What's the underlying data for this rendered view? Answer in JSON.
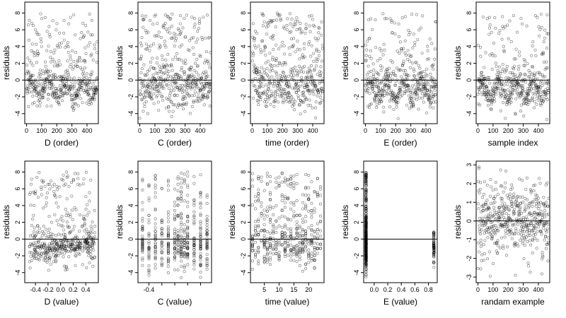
{
  "chart_data": [
    {
      "type": "scatter",
      "id": "p1",
      "xlabel": "D (order)",
      "ylabel": "residuals",
      "xlim": [
        -12,
        475
      ],
      "ylim": [
        -5.2,
        9.3
      ],
      "xticks": [
        0,
        100,
        200,
        300,
        400
      ],
      "yticks": [
        -4,
        -2,
        0,
        2,
        4,
        6,
        8
      ],
      "hline": 0,
      "pattern": "order_clustered",
      "n": 470
    },
    {
      "type": "scatter",
      "id": "p2",
      "xlabel": "C (order)",
      "ylabel": "residuals",
      "xlim": [
        -12,
        475
      ],
      "ylim": [
        -5.2,
        9.3
      ],
      "xticks": [
        0,
        100,
        200,
        300,
        400
      ],
      "yticks": [
        -4,
        -2,
        0,
        2,
        4,
        6,
        8
      ],
      "hline": 0,
      "pattern": "order",
      "n": 470
    },
    {
      "type": "scatter",
      "id": "p3",
      "xlabel": "time (order)",
      "ylabel": "residuals",
      "xlim": [
        -12,
        475
      ],
      "ylim": [
        -5.2,
        9.3
      ],
      "xticks": [
        0,
        100,
        200,
        300,
        400
      ],
      "yticks": [
        -4,
        -2,
        0,
        2,
        4,
        6,
        8
      ],
      "hline": 0,
      "pattern": "order",
      "n": 470
    },
    {
      "type": "scatter",
      "id": "p4",
      "xlabel": "E (order)",
      "ylabel": "residuals",
      "xlim": [
        -12,
        475
      ],
      "ylim": [
        -5.2,
        9.3
      ],
      "xticks": [
        0,
        100,
        200,
        300,
        400
      ],
      "yticks": [
        -4,
        -2,
        0,
        2,
        4,
        6,
        8
      ],
      "hline": 0,
      "pattern": "order_clustered",
      "n": 470
    },
    {
      "type": "scatter",
      "id": "p5",
      "xlabel": "sample index",
      "ylabel": "residuals",
      "xlim": [
        -12,
        475
      ],
      "ylim": [
        -5.2,
        9.3
      ],
      "xticks": [
        0,
        100,
        200,
        300,
        400
      ],
      "yticks": [
        -4,
        -2,
        0,
        2,
        4,
        6,
        8
      ],
      "hline": 0,
      "pattern": "order_clustered",
      "n": 470
    },
    {
      "type": "scatter",
      "id": "p6",
      "xlabel": "D (value)",
      "ylabel": "residuals",
      "xlim": [
        -0.57,
        0.6
      ],
      "ylim": [
        -5.2,
        9.3
      ],
      "xticks": [
        -0.4,
        -0.2,
        0.0,
        0.2,
        0.4
      ],
      "xtick_labels": [
        "-0.4",
        "-0.2",
        "0.0",
        "0.2",
        "0.4"
      ],
      "yticks": [
        -4,
        -2,
        0,
        2,
        4,
        6,
        8
      ],
      "hline": 0,
      "pattern": "value_continuous",
      "xrange": [
        -0.5,
        0.55
      ],
      "n": 470
    },
    {
      "type": "scatter",
      "id": "p7",
      "xlabel": "C (value)",
      "ylabel": "residuals",
      "xlim": [
        -0.57,
        0.57
      ],
      "ylim": [
        -5.2,
        9.3
      ],
      "xticks": [
        -0.4,
        -0.2,
        0.0,
        0.2,
        0.4
      ],
      "xtick_labels": [
        "-0.4",
        "",
        "",
        "",
        ""
      ],
      "yticks": [
        -4,
        -2,
        0,
        2,
        4,
        6,
        8
      ],
      "hline": 0,
      "pattern": "value_discrete",
      "levels": [
        -0.5,
        -0.4,
        -0.3,
        -0.2,
        -0.1,
        0,
        0.05,
        0.1,
        0.15,
        0.2,
        0.3,
        0.4,
        0.5
      ],
      "n": 470
    },
    {
      "type": "scatter",
      "id": "p8",
      "xlabel": "time (value)",
      "ylabel": "residuals",
      "xlim": [
        0.3,
        25.2
      ],
      "ylim": [
        -5.2,
        9.3
      ],
      "xticks": [
        5,
        10,
        15,
        20
      ],
      "yticks": [
        -4,
        -2,
        0,
        2,
        4,
        6,
        8
      ],
      "hline": 0,
      "pattern": "value_discrete",
      "levels": [
        1,
        2,
        3,
        4,
        5,
        6,
        7,
        8,
        9,
        10,
        11,
        12,
        13,
        14,
        15,
        16,
        17,
        18,
        19,
        20,
        21,
        22,
        23,
        24
      ],
      "n": 470
    },
    {
      "type": "scatter",
      "id": "p9",
      "xlabel": "E (value)",
      "ylabel": "residuals",
      "xlim": [
        -0.155,
        0.93
      ],
      "ylim": [
        -5.2,
        9.3
      ],
      "xticks": [
        0.0,
        0.2,
        0.4,
        0.6,
        0.8
      ],
      "xtick_labels": [
        "0.0",
        "0.2",
        "0.4",
        "0.6",
        "0.8"
      ],
      "yticks": [
        -4,
        -2,
        0,
        2,
        4,
        6,
        8
      ],
      "hline": 0,
      "pattern": "value_bimodal",
      "levels": [
        -0.12,
        0.88
      ],
      "n": 470
    },
    {
      "type": "scatter",
      "id": "p10",
      "xlabel": "randam example",
      "ylabel": "residuals",
      "xlim": [
        -12,
        475
      ],
      "ylim": [
        -3.3,
        3.2
      ],
      "xticks": [
        0,
        100,
        200,
        300,
        400
      ],
      "yticks": [
        -3,
        -2,
        -1,
        0,
        1,
        2,
        3
      ],
      "hline": 0,
      "pattern": "random",
      "n": 470
    }
  ]
}
